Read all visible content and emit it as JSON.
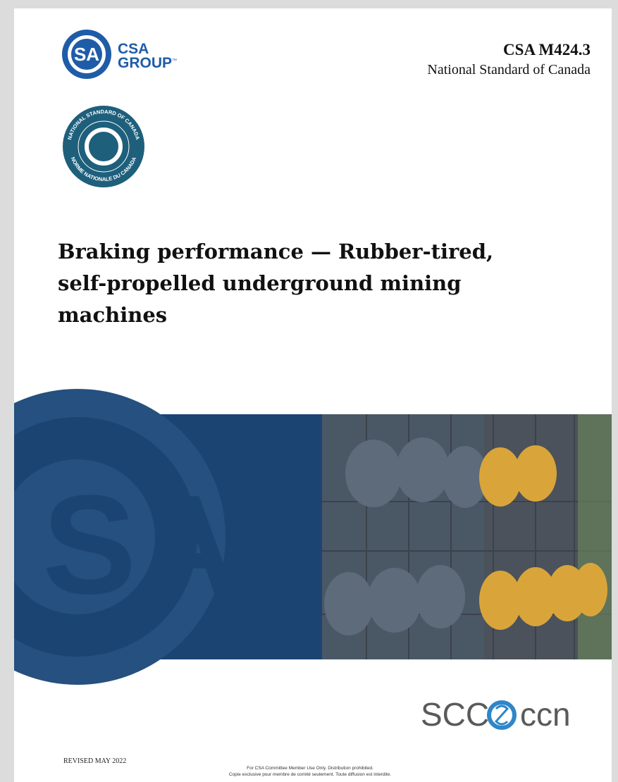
{
  "header": {
    "logo_name": "CSA",
    "logo_sub": "GROUP",
    "logo_tm": "™",
    "standard_id": "CSA M424.3",
    "standard_kind": "National Standard of Canada"
  },
  "seal": {
    "outer_top": "NATIONAL STANDARD OF CANADA",
    "outer_bottom": "NORME NATIONALE DU CANADA"
  },
  "title": [
    "Braking performance — Rubber-tired,",
    "self-propelled underground mining",
    "machines"
  ],
  "partner_logo": {
    "left": "SCC",
    "right": "CCN"
  },
  "footer": {
    "revised": "REVISED MAY 2022",
    "notice": [
      "For CSA Committee Member Use Only.  Distribution prohibited.",
      "Copie exclusive pour membre de comité seulement. Toute diffusion est interdite."
    ]
  }
}
